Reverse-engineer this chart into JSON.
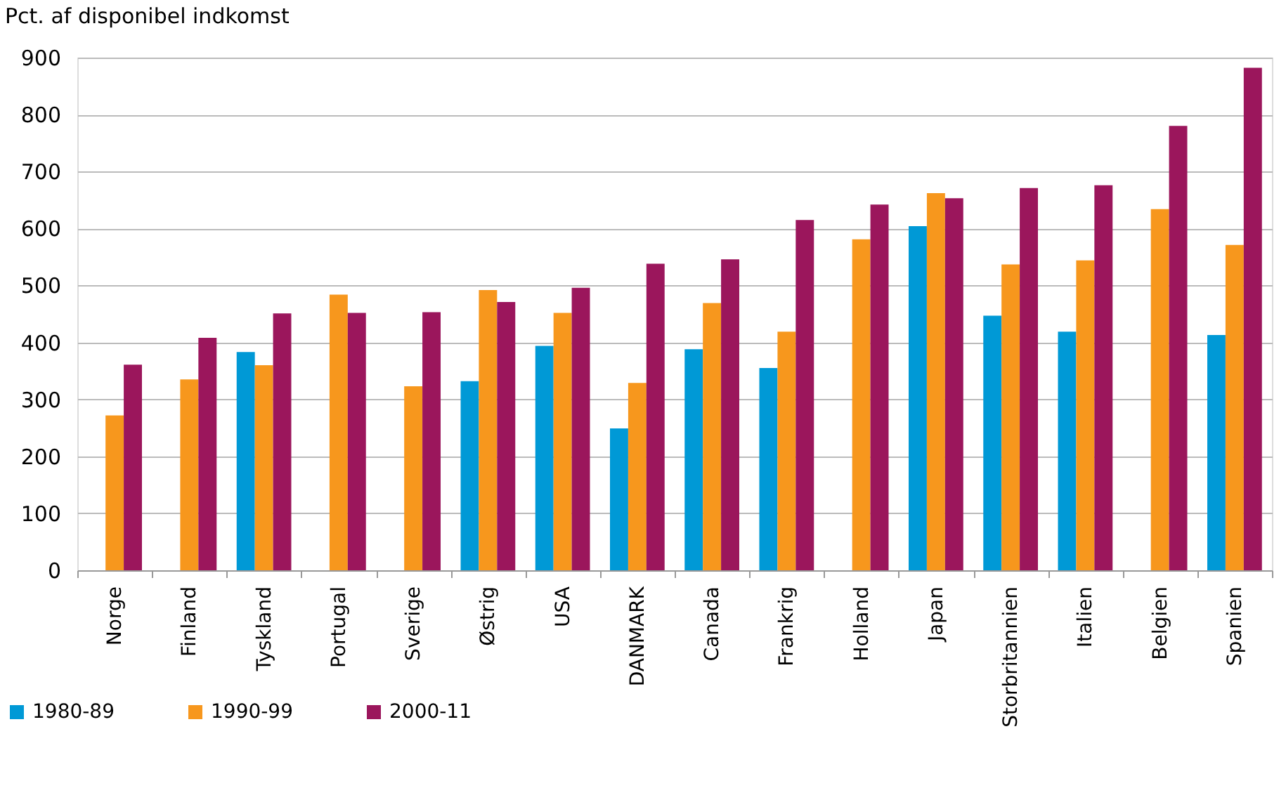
{
  "chart_data": {
    "type": "bar",
    "ylabel": "Pct. af disponibel indkomst",
    "categories": [
      "Norge",
      "Finland",
      "Tyskland",
      "Portugal",
      "Sverige",
      "Østrig",
      "USA",
      "DANMARK",
      "Canada",
      "Frankrig",
      "Holland",
      "Japan",
      "Storbritannien",
      "Italien",
      "Belgien",
      "Spanien"
    ],
    "series": [
      {
        "name": "1980-89",
        "color": "#0099d6",
        "values": [
          null,
          null,
          383,
          null,
          null,
          332,
          394,
          249,
          388,
          355,
          null,
          604,
          447,
          419,
          null,
          413
        ]
      },
      {
        "name": "1990-99",
        "color": "#f7971d",
        "values": [
          272,
          335,
          360,
          484,
          323,
          492,
          452,
          329,
          469,
          419,
          581,
          662,
          537,
          544,
          634,
          571
        ]
      },
      {
        "name": "2000-11",
        "color": "#9b165c",
        "values": [
          361,
          408,
          451,
          452,
          453,
          471,
          496,
          538,
          546,
          615,
          642,
          653,
          671,
          676,
          780,
          882
        ]
      }
    ],
    "ylim": [
      0,
      900
    ],
    "yticks": [
      0,
      100,
      200,
      300,
      400,
      500,
      600,
      700,
      800,
      900
    ],
    "grid": "y",
    "legend": "bottom left"
  }
}
